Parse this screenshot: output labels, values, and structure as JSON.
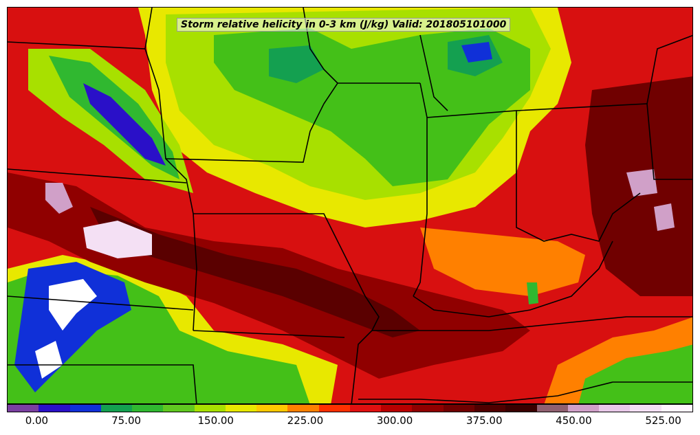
{
  "title": "Storm relative helicity in 0-3 km (J/kg) Valid: 201805101000",
  "colorbar": {
    "colors": [
      "#7a3fa0",
      "#2a10c8",
      "#1030d8",
      "#14a050",
      "#30b830",
      "#60c820",
      "#a8e000",
      "#e8e800",
      "#ffc800",
      "#ff8000",
      "#ff3000",
      "#e01010",
      "#b80000",
      "#900000",
      "#700000",
      "#500000",
      "#3a0000",
      "#906070",
      "#d0a0c8",
      "#e8c8e8",
      "#f4e0f4",
      "#fff4ff"
    ],
    "tick_labels": [
      "0.00",
      "75.00",
      "150.00",
      "225.00",
      "300.00",
      "375.00",
      "450.00",
      "525.00"
    ],
    "range": [
      -25,
      550
    ],
    "tick_values": [
      0,
      75,
      150,
      225,
      300,
      375,
      450,
      525
    ]
  }
}
